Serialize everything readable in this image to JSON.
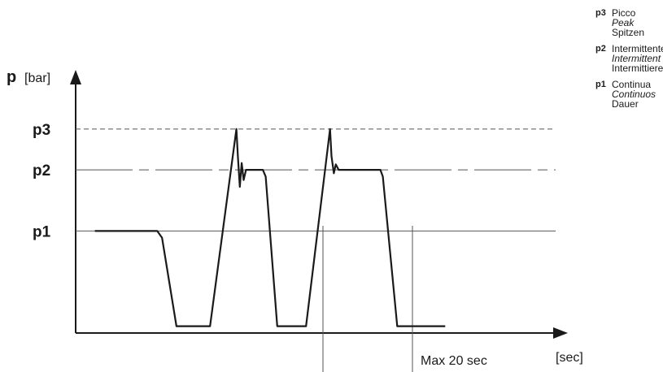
{
  "chart_data": {
    "type": "line",
    "ylabel_symbol": "p",
    "ylabel_unit": "[bar]",
    "xlabel": "[sec]",
    "levels": [
      {
        "key": "p3",
        "value": 3.0,
        "style": "dashed"
      },
      {
        "key": "p2",
        "value": 2.4,
        "style": "dashdot"
      },
      {
        "key": "p1",
        "value": 1.5,
        "style": "solid"
      }
    ],
    "ylim": [
      0,
      4.3
    ],
    "xlim": [
      0,
      100
    ],
    "series": [
      {
        "points": [
          [
            4,
            1.5
          ],
          [
            17,
            1.5
          ],
          [
            18,
            1.4
          ],
          [
            21,
            0.1
          ],
          [
            28,
            0.1
          ],
          [
            33.5,
            3.0
          ],
          [
            33.8,
            2.6
          ],
          [
            34.2,
            2.15
          ],
          [
            34.6,
            2.5
          ],
          [
            35,
            2.25
          ],
          [
            35.5,
            2.4
          ],
          [
            39,
            2.4
          ],
          [
            39.6,
            2.3
          ],
          [
            42,
            0.1
          ],
          [
            48,
            0.1
          ],
          [
            53,
            3.0
          ],
          [
            53.3,
            2.6
          ],
          [
            53.8,
            2.35
          ],
          [
            54.2,
            2.48
          ],
          [
            54.8,
            2.4
          ],
          [
            63.5,
            2.4
          ],
          [
            64,
            2.3
          ],
          [
            67,
            0.1
          ],
          [
            77,
            0.1
          ]
        ]
      }
    ],
    "annotation": {
      "text": "Max 20 sec",
      "x_start": 51.5,
      "x_end": 66.8
    }
  },
  "legend": [
    {
      "key": "p3",
      "lines": [
        "Picco",
        "Peak",
        "Spitzen"
      ]
    },
    {
      "key": "p2",
      "lines": [
        "Intermittente",
        "Intermittent",
        "Intermittierender"
      ]
    },
    {
      "key": "p1",
      "lines": [
        "Continua",
        "Continuos",
        "Dauer"
      ]
    }
  ],
  "colors": {
    "line": "#1a1a1a",
    "guide": "#555555"
  }
}
